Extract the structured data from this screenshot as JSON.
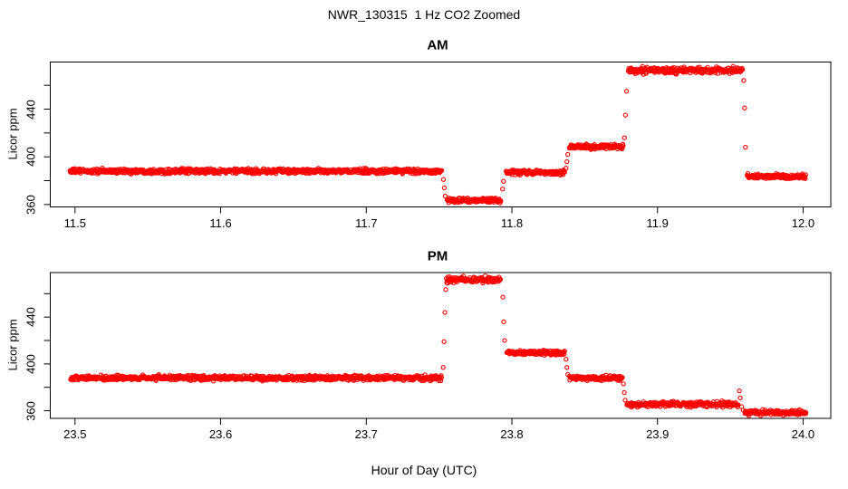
{
  "figure": {
    "title": "NWR_130315  1 Hz CO2 Zoomed",
    "xlabel": "Hour of Day (UTC)",
    "background_color": "#FFFFFF",
    "axis_color": "#000000",
    "point_color": "#FF0000"
  },
  "chart_data": [
    {
      "type": "scatter",
      "title": "AM",
      "ylabel": "Licor ppm",
      "marker": "open-circle",
      "color": "#FF0000",
      "sample_rate_hz": 1,
      "grid": false,
      "legend": "none",
      "xlim": [
        11.483,
        12.019
      ],
      "ylim": [
        358,
        479.5
      ],
      "xticks": [
        11.5,
        11.6,
        11.7,
        11.8,
        11.9,
        12.0
      ],
      "xtick_labels": [
        "11.5",
        "11.6",
        "11.7",
        "11.8",
        "11.9",
        "12.0"
      ],
      "yticks": [
        360,
        400,
        440
      ],
      "ytick_labels": [
        "360",
        "400",
        "440"
      ],
      "yticks_minor": [
        380,
        420,
        460
      ],
      "segments": [
        {
          "x0": 11.4965,
          "x1": 11.752,
          "y": 388.0,
          "noise": 1.0
        },
        {
          "x0": 11.7555,
          "x1": 11.7925,
          "y": 363.5,
          "noise": 1.0
        },
        {
          "x0": 11.796,
          "x1": 11.8365,
          "y": 387.0,
          "noise": 1.0
        },
        {
          "x0": 11.8395,
          "x1": 11.8765,
          "y": 408.5,
          "noise": 1.0
        },
        {
          "x0": 11.88,
          "x1": 11.9585,
          "y": 472.5,
          "noise": 1.3
        },
        {
          "x0": 11.9615,
          "x1": 12.002,
          "y": 383.5,
          "noise": 1.0
        }
      ],
      "transition_points": [
        {
          "x": 11.753,
          "y": 381.0
        },
        {
          "x": 11.7536,
          "y": 374.0
        },
        {
          "x": 11.7542,
          "y": 367.0
        },
        {
          "x": 11.7936,
          "y": 373.0
        },
        {
          "x": 11.7942,
          "y": 379.5
        },
        {
          "x": 11.8372,
          "y": 390.5
        },
        {
          "x": 11.8378,
          "y": 396.0
        },
        {
          "x": 11.8384,
          "y": 402.0
        },
        {
          "x": 11.8773,
          "y": 416.0
        },
        {
          "x": 11.878,
          "y": 435.0
        },
        {
          "x": 11.8787,
          "y": 455.0
        },
        {
          "x": 11.9592,
          "y": 464.0
        },
        {
          "x": 11.9598,
          "y": 441.0
        },
        {
          "x": 11.9604,
          "y": 408.0
        }
      ]
    },
    {
      "type": "scatter",
      "title": "PM",
      "ylabel": "Licor ppm",
      "marker": "open-circle",
      "color": "#FF0000",
      "sample_rate_hz": 1,
      "grid": false,
      "legend": "none",
      "xlim": [
        23.483,
        24.019
      ],
      "ylim": [
        353.5,
        478
      ],
      "xticks": [
        23.5,
        23.6,
        23.7,
        23.8,
        23.9,
        24.0
      ],
      "xtick_labels": [
        "23.5",
        "23.6",
        "23.7",
        "23.8",
        "23.9",
        "24.0"
      ],
      "yticks": [
        360,
        400,
        440
      ],
      "ytick_labels": [
        "360",
        "400",
        "440"
      ],
      "yticks_minor": [
        380,
        420,
        460
      ],
      "segments": [
        {
          "x0": 23.497,
          "x1": 23.752,
          "y": 388.0,
          "noise": 1.0
        },
        {
          "x0": 23.755,
          "x1": 23.7925,
          "y": 472.0,
          "noise": 1.3
        },
        {
          "x0": 23.7965,
          "x1": 23.8365,
          "y": 409.5,
          "noise": 1.0
        },
        {
          "x0": 23.8395,
          "x1": 23.876,
          "y": 388.0,
          "noise": 1.0
        },
        {
          "x0": 23.879,
          "x1": 23.9555,
          "y": 365.5,
          "noise": 1.1
        },
        {
          "x0": 23.96,
          "x1": 24.002,
          "y": 358.5,
          "noise": 1.0
        }
      ],
      "transition_points": [
        {
          "x": 23.7528,
          "y": 397.0
        },
        {
          "x": 23.7534,
          "y": 419.0
        },
        {
          "x": 23.754,
          "y": 444.0
        },
        {
          "x": 23.7546,
          "y": 463.5
        },
        {
          "x": 23.7938,
          "y": 457.0
        },
        {
          "x": 23.7944,
          "y": 436.0
        },
        {
          "x": 23.795,
          "y": 420.0
        },
        {
          "x": 23.8372,
          "y": 404.0
        },
        {
          "x": 23.8378,
          "y": 397.0
        },
        {
          "x": 23.8384,
          "y": 391.0
        },
        {
          "x": 23.8766,
          "y": 383.0
        },
        {
          "x": 23.8772,
          "y": 375.5
        },
        {
          "x": 23.8778,
          "y": 369.0
        },
        {
          "x": 23.9562,
          "y": 377.0
        },
        {
          "x": 23.9568,
          "y": 371.0
        },
        {
          "x": 23.9578,
          "y": 363.5
        },
        {
          "x": 23.9588,
          "y": 360.5
        }
      ]
    }
  ]
}
